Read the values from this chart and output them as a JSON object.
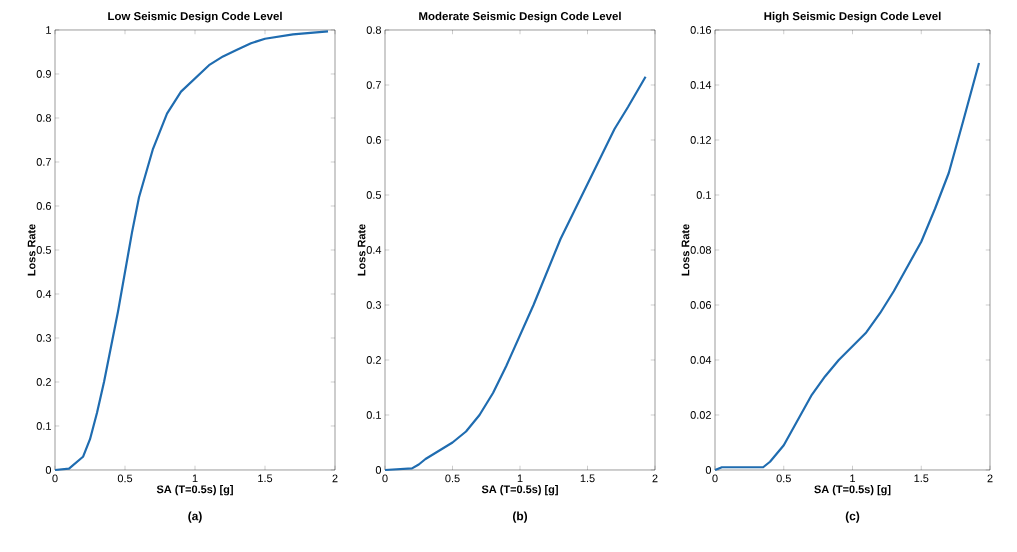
{
  "chart_data": [
    {
      "type": "line",
      "title": "Low Seismic Design Code Level",
      "xlabel": "SA (T=0.5s) [g]",
      "ylabel": "Loss Rate",
      "annotations": [
        "(a)"
      ],
      "color": "#1f6cb0",
      "x": [
        0,
        0.1,
        0.2,
        0.25,
        0.3,
        0.35,
        0.4,
        0.45,
        0.5,
        0.55,
        0.6,
        0.7,
        0.8,
        0.9,
        1.0,
        1.1,
        1.2,
        1.3,
        1.4,
        1.5,
        1.7,
        1.95
      ],
      "values": [
        0,
        0.003,
        0.03,
        0.07,
        0.13,
        0.2,
        0.28,
        0.36,
        0.45,
        0.54,
        0.62,
        0.73,
        0.81,
        0.86,
        0.89,
        0.92,
        0.94,
        0.955,
        0.97,
        0.98,
        0.99,
        0.997
      ],
      "xlim": [
        0,
        2
      ],
      "ylim": [
        0,
        1
      ],
      "xticks": [
        0,
        0.5,
        1,
        1.5,
        2
      ],
      "yticks": [
        0,
        0.1,
        0.2,
        0.3,
        0.4,
        0.5,
        0.6,
        0.7,
        0.8,
        0.9,
        1
      ]
    },
    {
      "type": "line",
      "title": "Moderate Seismic Design Code Level",
      "xlabel": "SA (T=0.5s) [g]",
      "ylabel": "Loss Rate",
      "annotations": [
        "(b)"
      ],
      "color": "#1f6cb0",
      "x": [
        0,
        0.2,
        0.25,
        0.3,
        0.4,
        0.5,
        0.6,
        0.7,
        0.8,
        0.9,
        1.0,
        1.1,
        1.2,
        1.3,
        1.4,
        1.5,
        1.6,
        1.7,
        1.8,
        1.93
      ],
      "values": [
        0,
        0.003,
        0.01,
        0.02,
        0.035,
        0.05,
        0.07,
        0.1,
        0.14,
        0.19,
        0.245,
        0.3,
        0.36,
        0.42,
        0.47,
        0.52,
        0.57,
        0.62,
        0.66,
        0.715
      ],
      "xlim": [
        0,
        2
      ],
      "ylim": [
        0,
        0.8
      ],
      "xticks": [
        0,
        0.5,
        1,
        1.5,
        2
      ],
      "yticks": [
        0,
        0.1,
        0.2,
        0.3,
        0.4,
        0.5,
        0.6,
        0.7,
        0.8
      ]
    },
    {
      "type": "line",
      "title": "High Seismic Design Code Level",
      "xlabel": "SA (T=0.5s) [g]",
      "ylabel": "Loss Rate",
      "annotations": [
        "(c)"
      ],
      "color": "#1f6cb0",
      "x": [
        0,
        0.05,
        0.35,
        0.4,
        0.5,
        0.6,
        0.7,
        0.8,
        0.9,
        1.0,
        1.1,
        1.2,
        1.3,
        1.4,
        1.5,
        1.6,
        1.7,
        1.8,
        1.92
      ],
      "values": [
        0,
        0.001,
        0.001,
        0.003,
        0.009,
        0.018,
        0.027,
        0.034,
        0.04,
        0.045,
        0.05,
        0.057,
        0.065,
        0.074,
        0.083,
        0.095,
        0.108,
        0.126,
        0.148
      ],
      "xlim": [
        0,
        2
      ],
      "ylim": [
        0,
        0.16
      ],
      "xticks": [
        0,
        0.5,
        1,
        1.5,
        2
      ],
      "yticks": [
        0,
        0.02,
        0.04,
        0.06,
        0.08,
        0.1,
        0.12,
        0.14,
        0.16
      ]
    }
  ]
}
